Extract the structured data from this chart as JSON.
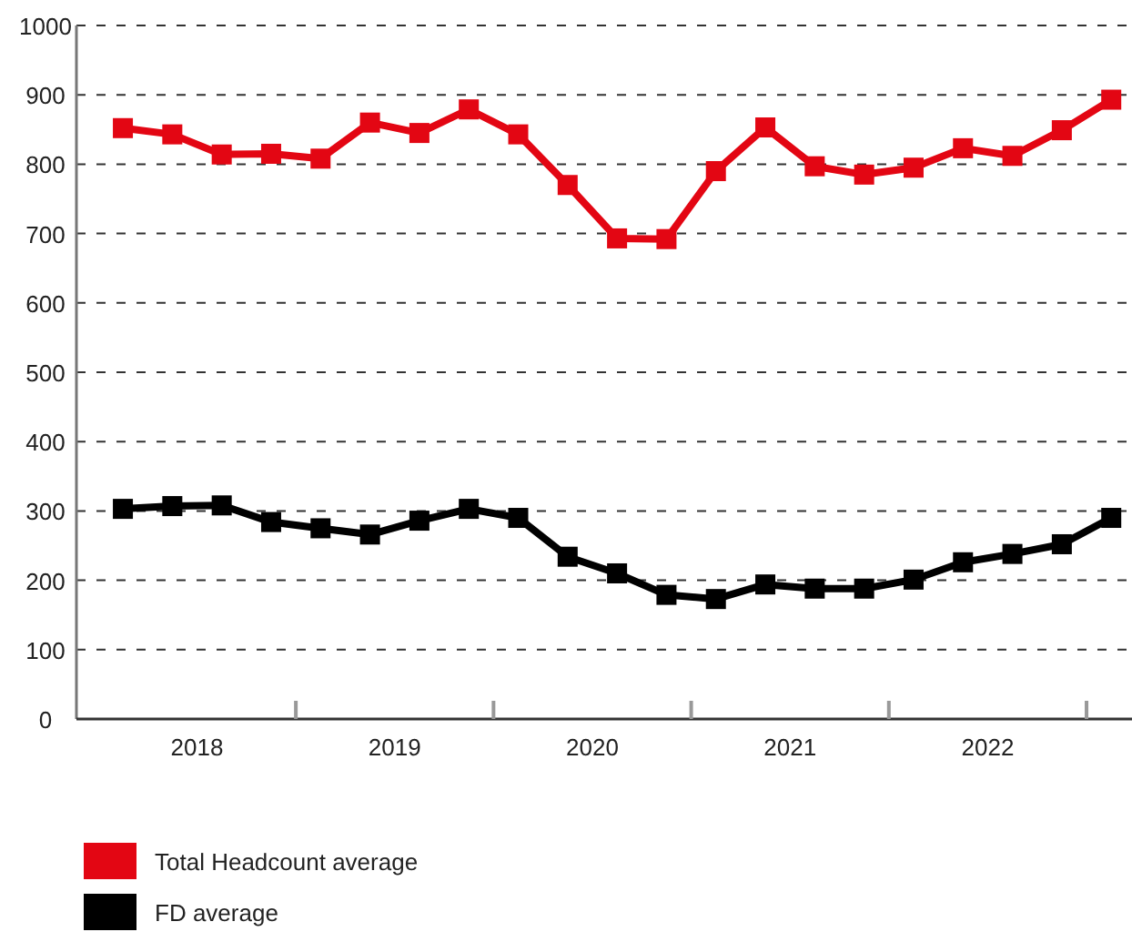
{
  "chart_data": {
    "type": "line",
    "x": [
      2018.125,
      2018.375,
      2018.625,
      2018.875,
      2019.125,
      2019.375,
      2019.625,
      2019.875,
      2020.125,
      2020.375,
      2020.625,
      2020.875,
      2021.125,
      2021.375,
      2021.625,
      2021.875,
      2022.125,
      2022.375,
      2022.625,
      2022.875,
      2023.125
    ],
    "series": [
      {
        "name": "Total Headcount average",
        "color": "#e30613",
        "values": [
          852,
          843,
          814,
          815,
          808,
          860,
          845,
          879,
          843,
          770,
          693,
          692,
          790,
          853,
          797,
          785,
          795,
          823,
          812,
          849,
          893
        ]
      },
      {
        "name": "FD average",
        "color": "#000000",
        "values": [
          303,
          307,
          308,
          284,
          275,
          266,
          286,
          303,
          290,
          234,
          210,
          179,
          173,
          194,
          188,
          188,
          201,
          226,
          238,
          252,
          290
        ]
      }
    ],
    "xlim": [
      2017.89,
      2023.23
    ],
    "xticks": [
      {
        "value": 2018.5,
        "label": "2018"
      },
      {
        "value": 2019,
        "label": null
      },
      {
        "value": 2019.5,
        "label": "2019"
      },
      {
        "value": 2020,
        "label": null
      },
      {
        "value": 2020.5,
        "label": "2020"
      },
      {
        "value": 2021,
        "label": null
      },
      {
        "value": 2021.5,
        "label": "2021"
      },
      {
        "value": 2022,
        "label": null
      },
      {
        "value": 2022.5,
        "label": "2022"
      },
      {
        "value": 2023,
        "label": null
      }
    ],
    "ylim": [
      0,
      1000
    ],
    "yticks": [
      0,
      100,
      200,
      300,
      400,
      500,
      600,
      700,
      800,
      900,
      1000
    ],
    "grid": "y",
    "legend": "bottom",
    "marker": "square",
    "line_style": "solid"
  }
}
